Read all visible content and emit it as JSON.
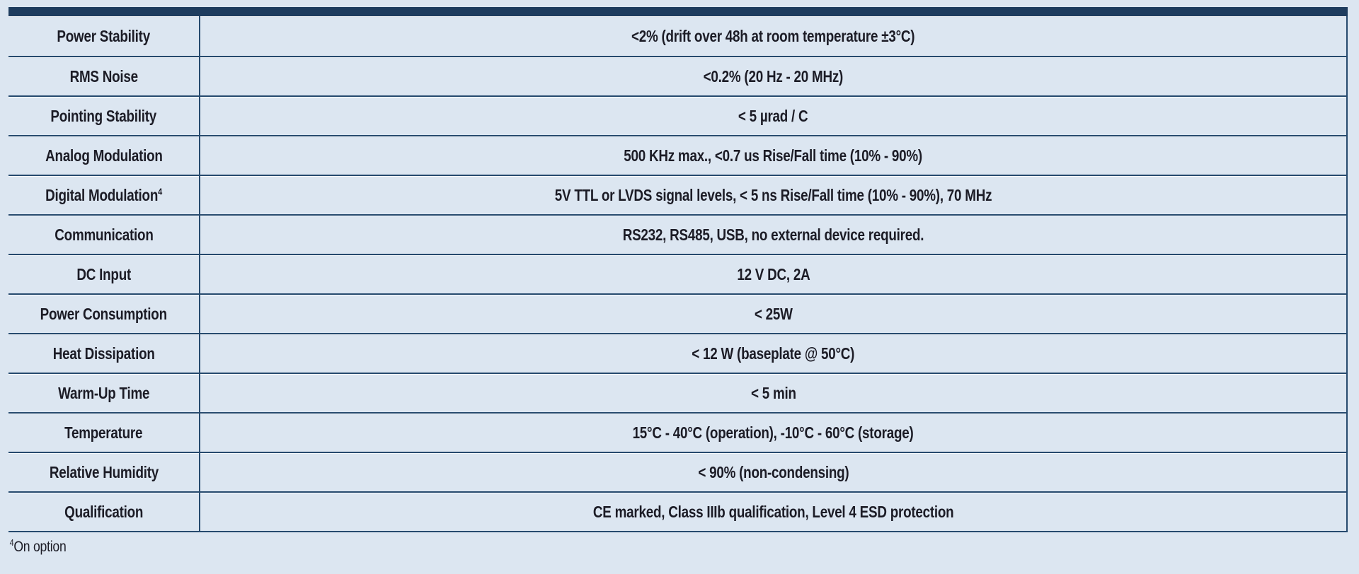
{
  "colors": {
    "background": "#dce6f1",
    "top_bar": "#1e3c5e",
    "grid_line": "#264a6e",
    "text": "#1c1c26"
  },
  "table": {
    "rows": [
      {
        "label": "Power Stability",
        "value": "<2% (drift over 48h at room temperature ±3°C)"
      },
      {
        "label": "RMS Noise",
        "value": "<0.2% (20 Hz - 20 MHz)"
      },
      {
        "label": "Pointing Stability",
        "value": "< 5 µrad / C"
      },
      {
        "label": "Analog Modulation",
        "value": "500 KHz max., <0.7 us Rise/Fall time (10% - 90%)"
      },
      {
        "label": "Digital Modulation",
        "label_sup": "4",
        "value": "5V TTL or LVDS signal levels, < 5 ns Rise/Fall time (10% - 90%), 70 MHz"
      },
      {
        "label": "Communication",
        "value": "RS232, RS485, USB, no external device required."
      },
      {
        "label": "DC Input",
        "value": "12 V DC, 2A"
      },
      {
        "label": "Power Consumption",
        "value": "< 25W"
      },
      {
        "label": "Heat Dissipation",
        "value": "< 12 W (baseplate @ 50°C)"
      },
      {
        "label": "Warm-Up Time",
        "value": "< 5 min"
      },
      {
        "label": "Temperature",
        "value": "15°C - 40°C (operation), -10°C - 60°C (storage)"
      },
      {
        "label": "Relative Humidity",
        "value": "< 90% (non-condensing)"
      },
      {
        "label": "Qualification",
        "value": "CE marked, Class IIIb qualification, Level 4 ESD protection"
      }
    ],
    "footnote": {
      "sup": "4",
      "text": "On option"
    }
  }
}
